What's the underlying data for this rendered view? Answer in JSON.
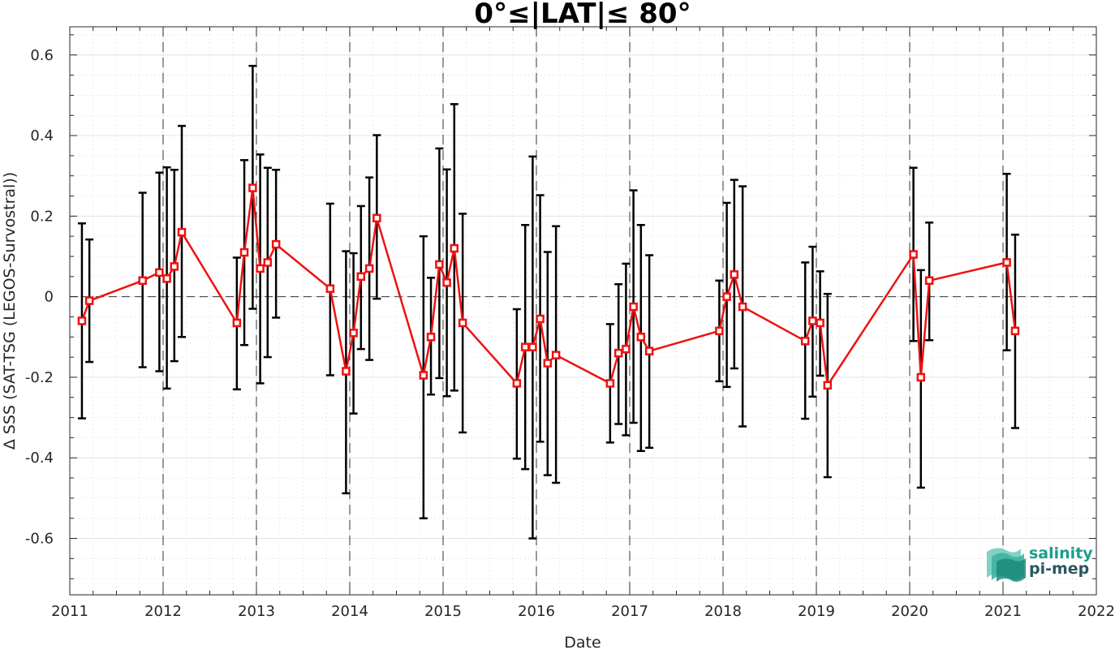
{
  "chart_data": {
    "type": "line",
    "title": "0°≤|LAT|≤ 80°",
    "xlabel": "Date",
    "ylabel": "Δ SSS (SAT-TSG (LEGOS-Survostral))",
    "xlim": [
      2011,
      2022
    ],
    "ylim": [
      -0.74,
      0.67
    ],
    "x_ticks": [
      2011,
      2012,
      2013,
      2014,
      2015,
      2016,
      2017,
      2018,
      2019,
      2020,
      2021,
      2022
    ],
    "x_tick_labels": [
      "2011",
      "2012",
      "2013",
      "2014",
      "2015",
      "2016",
      "2017",
      "2018",
      "2019",
      "2020",
      "2021",
      "2022"
    ],
    "y_ticks": [
      -0.6,
      -0.4,
      -0.2,
      0,
      0.2,
      0.4,
      0.6
    ],
    "y_tick_labels": [
      "-0.6",
      "-0.4",
      "-0.2",
      "0",
      "0.2",
      "0.4",
      "0.6"
    ],
    "grid": true,
    "minor_grid": true,
    "zero_line": true,
    "year_dashed_lines": [
      2012,
      2013,
      2014,
      2015,
      2016,
      2017,
      2018,
      2019,
      2020,
      2021
    ],
    "colors": {
      "line": "#ee1111",
      "marker": "#ee1111",
      "errorbar": "#000000"
    },
    "series": [
      {
        "x": [
          2011.13,
          2011.21,
          2011.78,
          2011.96,
          2012.04,
          2012.12,
          2012.2,
          2012.79,
          2012.87,
          2012.96,
          2013.04,
          2013.12,
          2013.21,
          2013.79,
          2013.96,
          2014.04,
          2014.12,
          2014.21,
          2014.29,
          2014.79,
          2014.87,
          2014.96,
          2015.04,
          2015.12,
          2015.21,
          2015.79,
          2015.88,
          2015.96,
          2016.04,
          2016.12,
          2016.21,
          2016.79,
          2016.88,
          2016.96,
          2017.04,
          2017.12,
          2017.21,
          2017.96,
          2018.04,
          2018.12,
          2018.21,
          2018.88,
          2018.96,
          2019.04,
          2019.12,
          2020.04,
          2020.12,
          2020.21,
          2021.04,
          2021.13
        ],
        "values": [
          -0.06,
          -0.01,
          0.04,
          0.06,
          0.045,
          0.075,
          0.16,
          -0.065,
          0.11,
          0.27,
          0.07,
          0.085,
          0.13,
          0.02,
          -0.185,
          -0.09,
          0.05,
          0.07,
          0.195,
          -0.195,
          -0.1,
          0.08,
          0.035,
          0.12,
          -0.065,
          -0.215,
          -0.125,
          -0.125,
          -0.055,
          -0.165,
          -0.145,
          -0.215,
          -0.14,
          -0.13,
          -0.025,
          -0.1,
          -0.135,
          -0.085,
          0.0,
          0.055,
          -0.025,
          -0.11,
          -0.06,
          -0.065,
          -0.22,
          0.105,
          -0.2,
          0.04,
          0.085,
          -0.085
        ],
        "err_upper": [
          0.182,
          0.142,
          0.258,
          0.308,
          0.321,
          0.315,
          0.424,
          0.097,
          0.339,
          0.573,
          0.353,
          0.32,
          0.315,
          0.231,
          0.113,
          0.108,
          0.225,
          0.296,
          0.401,
          0.15,
          0.047,
          0.368,
          0.316,
          0.478,
          0.206,
          -0.031,
          0.178,
          0.348,
          0.252,
          0.111,
          0.175,
          -0.068,
          0.031,
          0.082,
          0.264,
          0.178,
          0.103,
          0.04,
          0.233,
          0.29,
          0.274,
          0.085,
          0.124,
          0.063,
          0.007,
          0.32,
          0.066,
          0.184,
          0.305,
          0.154
        ],
        "err_lower": [
          -0.302,
          -0.162,
          -0.175,
          -0.185,
          -0.228,
          -0.16,
          -0.1,
          -0.23,
          -0.12,
          -0.03,
          -0.215,
          -0.15,
          -0.052,
          -0.195,
          -0.488,
          -0.29,
          -0.13,
          -0.157,
          -0.005,
          -0.55,
          -0.243,
          -0.202,
          -0.247,
          -0.233,
          -0.337,
          -0.402,
          -0.428,
          -0.6,
          -0.36,
          -0.443,
          -0.462,
          -0.362,
          -0.316,
          -0.344,
          -0.313,
          -0.383,
          -0.375,
          -0.21,
          -0.224,
          -0.178,
          -0.322,
          -0.303,
          -0.248,
          -0.196,
          -0.448,
          -0.11,
          -0.474,
          -0.108,
          -0.133,
          -0.326
        ]
      }
    ]
  },
  "logo": {
    "line1": "salinity",
    "line2": "pi-mep",
    "colors": {
      "primary": "#1a9e8c",
      "dark": "#2b5660"
    }
  }
}
